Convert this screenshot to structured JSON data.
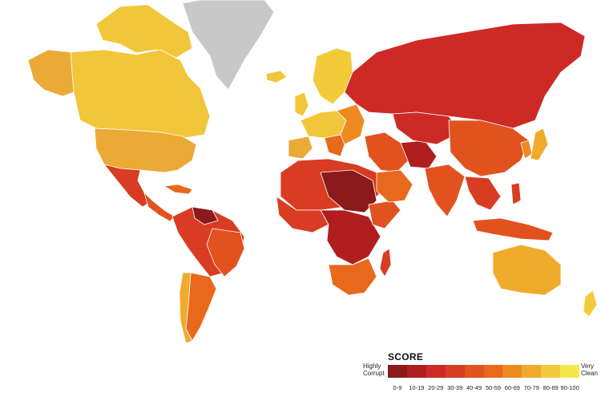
{
  "legend": {
    "title": "SCORE",
    "low_label": "Highly Corrupt",
    "high_label": "Very Clean",
    "bins": [
      {
        "label": "0-9",
        "color": "#8b1a1a"
      },
      {
        "label": "10-19",
        "color": "#b01e1e"
      },
      {
        "label": "20-29",
        "color": "#cd2a26"
      },
      {
        "label": "30-39",
        "color": "#d83c22"
      },
      {
        "label": "40-49",
        "color": "#e2521f"
      },
      {
        "label": "50-59",
        "color": "#e8681c"
      },
      {
        "label": "60-69",
        "color": "#ee8a1f"
      },
      {
        "label": "70-79",
        "color": "#efab2b"
      },
      {
        "label": "80-89",
        "color": "#f2cb3a"
      },
      {
        "label": "90-100",
        "color": "#f5e94a"
      }
    ]
  },
  "colors": {
    "no_data": "#c8c8c8",
    "ocean": "#ffffff",
    "border": "#ffffff"
  }
}
